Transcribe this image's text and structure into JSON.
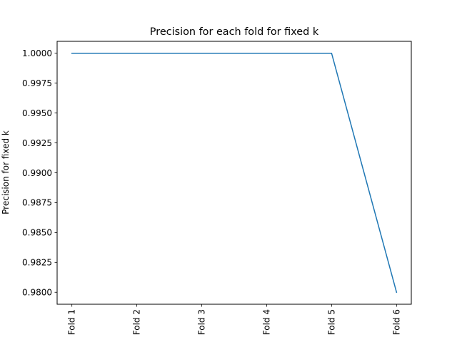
{
  "chart_data": {
    "type": "line",
    "title": "Precision for each fold for fixed k",
    "xlabel": "",
    "ylabel": "Precision for fixed k",
    "categories": [
      "Fold 1",
      "Fold 2",
      "Fold 3",
      "Fold 4",
      "Fold 5",
      "Fold 6"
    ],
    "series": [
      {
        "name": "precision",
        "values": [
          1.0,
          1.0,
          1.0,
          1.0,
          1.0,
          0.98
        ],
        "color": "#1f77b4"
      }
    ],
    "ylim": [
      0.979,
      1.001
    ],
    "yticks": [
      0.98,
      0.9825,
      0.985,
      0.9875,
      0.99,
      0.9925,
      0.995,
      0.9975,
      1.0
    ],
    "ytick_labels": [
      "0.9800",
      "0.9825",
      "0.9850",
      "0.9875",
      "0.9900",
      "0.9925",
      "0.9950",
      "0.9975",
      "1.0000"
    ],
    "grid": false,
    "legend": "none"
  }
}
